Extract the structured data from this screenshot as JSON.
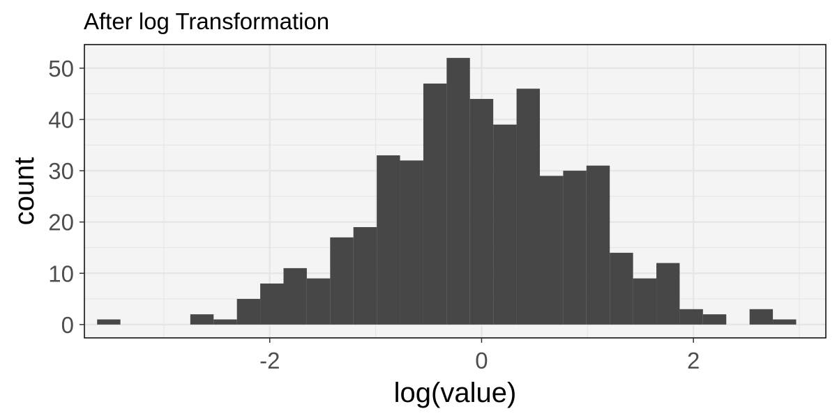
{
  "chart_data": {
    "type": "bar",
    "title": "After log Transformation",
    "xlabel": "log(value)",
    "ylabel": "count",
    "xlim": [
      -3.75,
      3.25
    ],
    "ylim": [
      -2.6,
      54.6
    ],
    "x_ticks": [
      -2,
      0,
      2
    ],
    "y_ticks": [
      0,
      10,
      20,
      30,
      40,
      50
    ],
    "x_tick_labels": [
      "-2",
      "0",
      "2"
    ],
    "y_tick_labels": [
      "0",
      "10",
      "20",
      "30",
      "40",
      "50"
    ],
    "grid": true,
    "bin_width": 0.22,
    "bins": [
      {
        "x": -3.52,
        "count": 1
      },
      {
        "x": -3.3,
        "count": 0
      },
      {
        "x": -3.08,
        "count": 0
      },
      {
        "x": -2.86,
        "count": 0
      },
      {
        "x": -2.64,
        "count": 2
      },
      {
        "x": -2.42,
        "count": 1
      },
      {
        "x": -2.2,
        "count": 5
      },
      {
        "x": -1.98,
        "count": 8
      },
      {
        "x": -1.76,
        "count": 11
      },
      {
        "x": -1.54,
        "count": 9
      },
      {
        "x": -1.32,
        "count": 17
      },
      {
        "x": -1.1,
        "count": 19
      },
      {
        "x": -0.88,
        "count": 33
      },
      {
        "x": -0.66,
        "count": 32
      },
      {
        "x": -0.44,
        "count": 47
      },
      {
        "x": -0.22,
        "count": 52
      },
      {
        "x": 0.0,
        "count": 44
      },
      {
        "x": 0.22,
        "count": 39
      },
      {
        "x": 0.44,
        "count": 46
      },
      {
        "x": 0.66,
        "count": 29
      },
      {
        "x": 0.88,
        "count": 30
      },
      {
        "x": 1.1,
        "count": 31
      },
      {
        "x": 1.32,
        "count": 14
      },
      {
        "x": 1.54,
        "count": 9
      },
      {
        "x": 1.76,
        "count": 12
      },
      {
        "x": 1.98,
        "count": 3
      },
      {
        "x": 2.2,
        "count": 2
      },
      {
        "x": 2.42,
        "count": 0
      },
      {
        "x": 2.64,
        "count": 3
      },
      {
        "x": 2.86,
        "count": 1
      }
    ],
    "colors": {
      "bar": "#474747",
      "panel_background": "#f4f4f4",
      "grid": "#e6e6e6",
      "border": "#000000"
    }
  }
}
